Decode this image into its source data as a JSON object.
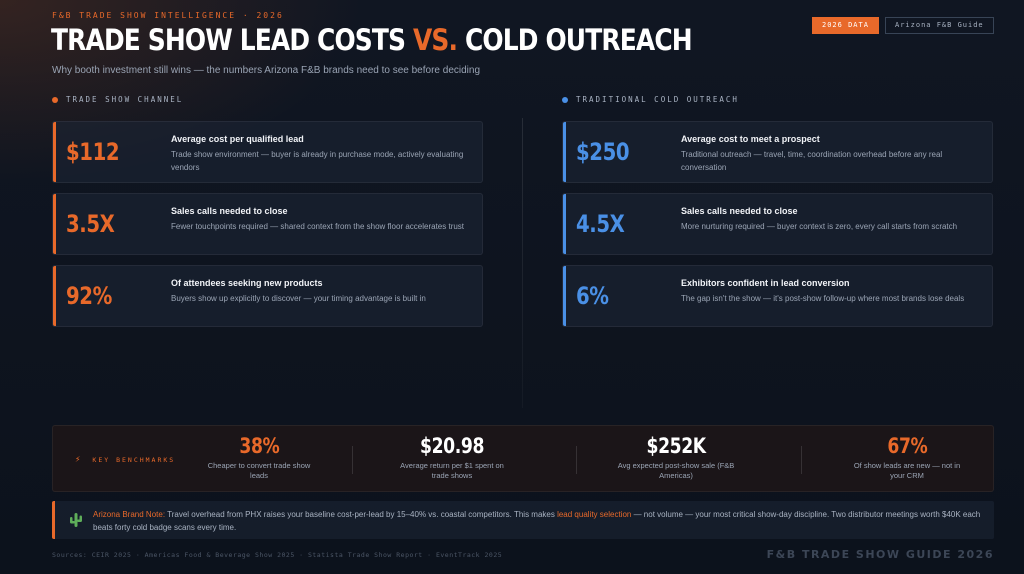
{
  "header": {
    "eyebrow": "F&B TRADE SHOW INTELLIGENCE · 2026",
    "title_part1": "TRADE SHOW LEAD COSTS ",
    "title_vs": "VS.",
    "title_part2": " COLD OUTREACH",
    "subtitle": "Why booth investment still wins — the numbers Arizona F&B brands need to see before deciding",
    "badge_data": "2026 DATA",
    "badge_guide": "Arizona F&B Guide"
  },
  "left": {
    "heading": "TRADE SHOW CHANNEL",
    "accent": "#e8692a",
    "cards": [
      {
        "stat": "$112",
        "title": "Average cost per qualified lead",
        "desc": "Trade show environment — buyer is already in purchase mode, actively evaluating vendors"
      },
      {
        "stat": "3.5X",
        "title": "Sales calls needed to close",
        "desc": "Fewer touchpoints required — shared context from the show floor accelerates trust"
      },
      {
        "stat": "92%",
        "title": "Of attendees seeking new products",
        "desc": "Buyers show up explicitly to discover — your timing advantage is built in"
      }
    ]
  },
  "right": {
    "heading": "TRADITIONAL COLD OUTREACH",
    "accent": "#4a90e6",
    "cards": [
      {
        "stat": "$250",
        "title": "Average cost to meet a prospect",
        "desc": "Traditional outreach — travel, time, coordination overhead before any real conversation"
      },
      {
        "stat": "4.5X",
        "title": "Sales calls needed to close",
        "desc": "More nurturing required — buyer context is zero, every call starts from scratch"
      },
      {
        "stat": "6%",
        "title": "Exhibitors confident in lead conversion",
        "desc": "The gap isn't the show — it's post-show follow-up where most brands lose deals"
      }
    ]
  },
  "benchmarks": {
    "label": "KEY BENCHMARKS",
    "icon": "lightning-icon",
    "items": [
      {
        "value": "38%",
        "label": "Cheaper to convert trade show leads"
      },
      {
        "value": "$20.98",
        "label": "Average return per $1 spent on trade shows"
      },
      {
        "value": "$252K",
        "label": "Avg expected post-show sale (F&B Americas)"
      },
      {
        "value": "67%",
        "label": "Of show leads are new — not in your CRM"
      }
    ]
  },
  "note": {
    "icon": "cactus-icon",
    "label": "Arizona Brand Note:",
    "text1": " Travel overhead from PHX raises your baseline cost-per-lead by 15–40% vs. coastal competitors. This makes ",
    "highlight": "lead quality selection",
    "text2": " — not volume — your most critical show-day discipline. Two distributor meetings worth $40K each beats forty cold badge scans every time."
  },
  "footer": {
    "sources": "Sources: CEIR 2025 · Americas Food & Beverage Show 2025 · Statista Trade Show Report · EventTrack 2025",
    "brand": "F&B TRADE SHOW GUIDE 2026"
  }
}
